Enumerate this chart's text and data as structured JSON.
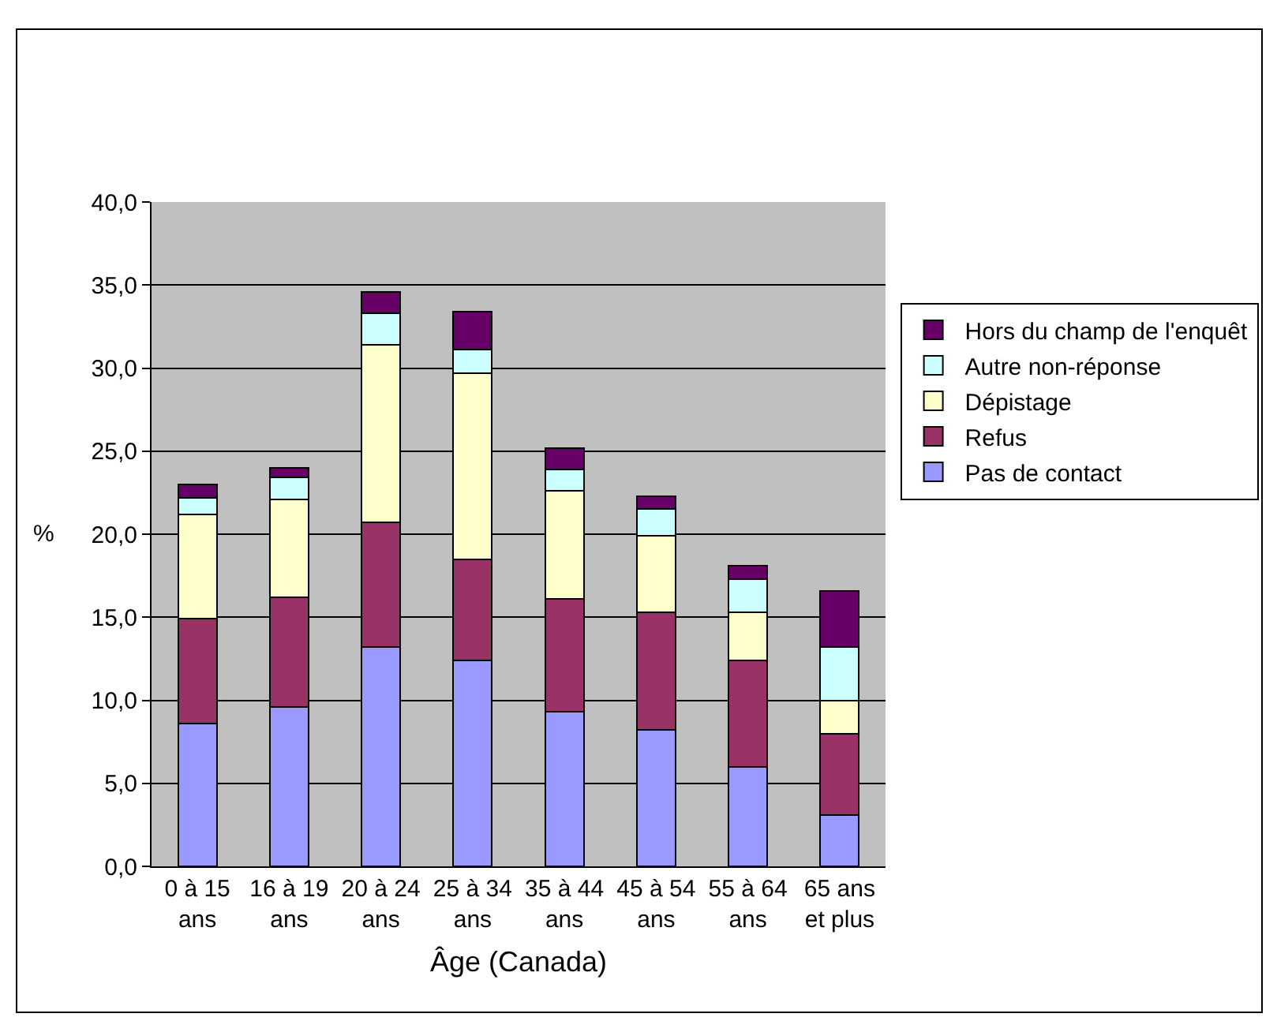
{
  "chart_data": {
    "type": "bar",
    "stacked": true,
    "xlabel": "Âge (Canada)",
    "ylabel": "%",
    "categories": [
      "0 à 15\nans",
      "16 à 19\nans",
      "20 à 24\nans",
      "25 à 34\nans",
      "35 à 44\nans",
      "45 à 54\nans",
      "55 à 64\nans",
      "65 ans\net plus"
    ],
    "series": [
      {
        "name": "Pas de contact",
        "color": "#9999ff",
        "values": [
          8.6,
          9.6,
          13.2,
          12.4,
          9.3,
          8.2,
          6.0,
          3.1
        ]
      },
      {
        "name": "Refus",
        "color": "#993366",
        "values": [
          6.3,
          6.6,
          7.5,
          6.1,
          6.8,
          7.1,
          6.4,
          4.9
        ]
      },
      {
        "name": "Dépistage",
        "color": "#ffffcc",
        "values": [
          6.3,
          5.9,
          10.7,
          11.2,
          6.5,
          4.6,
          2.9,
          2.0
        ]
      },
      {
        "name": "Autre non-réponse",
        "color": "#ccffff",
        "values": [
          1.0,
          1.3,
          1.9,
          1.4,
          1.3,
          1.6,
          2.0,
          3.2
        ]
      },
      {
        "name": "Hors du champ de l'enquêt",
        "color": "#660066",
        "values": [
          0.8,
          0.6,
          1.3,
          2.3,
          1.3,
          0.8,
          0.8,
          3.4
        ]
      }
    ],
    "ylim": [
      0,
      40
    ],
    "yticks": [
      {
        "value": 0,
        "label": "0,0"
      },
      {
        "value": 5,
        "label": "5,0"
      },
      {
        "value": 10,
        "label": "10,0"
      },
      {
        "value": 15,
        "label": "15,0"
      },
      {
        "value": 20,
        "label": "20,0"
      },
      {
        "value": 25,
        "label": "25,0"
      },
      {
        "value": 30,
        "label": "30,0"
      },
      {
        "value": 35,
        "label": "35,0"
      },
      {
        "value": 40,
        "label": "40,0"
      }
    ],
    "grid": "y",
    "legend": "right"
  }
}
